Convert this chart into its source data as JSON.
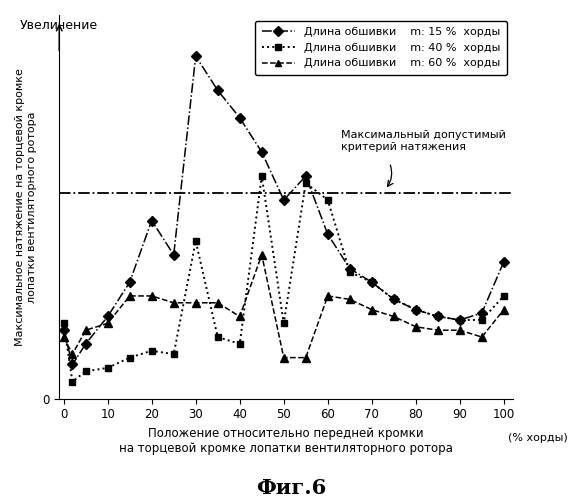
{
  "title": "Фиг.6",
  "xlabel_line1": "Положение относительно передней кромки",
  "xlabel_line2": "на торцевой кромке лопатки вентиляторного ротора",
  "ylabel": "Максимальное натяжение на торцевой кромке\nлопатки вентиляторного ротора",
  "top_label": "Увеличение",
  "xunit": "(% хорды)",
  "hline_label1": "Максимальный допустимый",
  "hline_label2": "критерий натяжения",
  "hline_y": 0.6,
  "legend_entries": [
    "Длина обшивки    m: 15 %  хорды",
    "Длина обшивки    m: 40 %  хорды",
    "Длина обшивки    m: 60 %  хорды"
  ],
  "series_15": {
    "x": [
      0,
      2,
      5,
      10,
      15,
      20,
      25,
      30,
      35,
      40,
      45,
      50,
      55,
      60,
      65,
      70,
      75,
      80,
      85,
      90,
      95,
      100
    ],
    "y": [
      0.2,
      0.1,
      0.16,
      0.24,
      0.34,
      0.52,
      0.42,
      1.0,
      0.9,
      0.82,
      0.72,
      0.58,
      0.65,
      0.48,
      0.38,
      0.34,
      0.29,
      0.26,
      0.24,
      0.23,
      0.25,
      0.4
    ]
  },
  "series_40": {
    "x": [
      0,
      2,
      5,
      10,
      15,
      20,
      25,
      30,
      35,
      40,
      45,
      50,
      55,
      60,
      65,
      70,
      75,
      80,
      85,
      90,
      95,
      100
    ],
    "y": [
      0.22,
      0.05,
      0.08,
      0.09,
      0.12,
      0.14,
      0.13,
      0.46,
      0.18,
      0.16,
      0.65,
      0.22,
      0.63,
      0.58,
      0.37,
      0.34,
      0.29,
      0.26,
      0.24,
      0.23,
      0.23,
      0.3
    ]
  },
  "series_60": {
    "x": [
      0,
      2,
      5,
      10,
      15,
      20,
      25,
      30,
      35,
      40,
      45,
      50,
      55,
      60,
      65,
      70,
      75,
      80,
      85,
      90,
      95,
      100
    ],
    "y": [
      0.18,
      0.13,
      0.2,
      0.22,
      0.3,
      0.3,
      0.28,
      0.28,
      0.28,
      0.24,
      0.42,
      0.12,
      0.12,
      0.3,
      0.29,
      0.26,
      0.24,
      0.21,
      0.2,
      0.2,
      0.18,
      0.26
    ]
  },
  "background_color": "#ffffff",
  "ylim": [
    0,
    1.12
  ],
  "xlim": [
    -1,
    102
  ],
  "xticks": [
    0,
    10,
    20,
    30,
    40,
    50,
    60,
    70,
    80,
    90,
    100
  ]
}
